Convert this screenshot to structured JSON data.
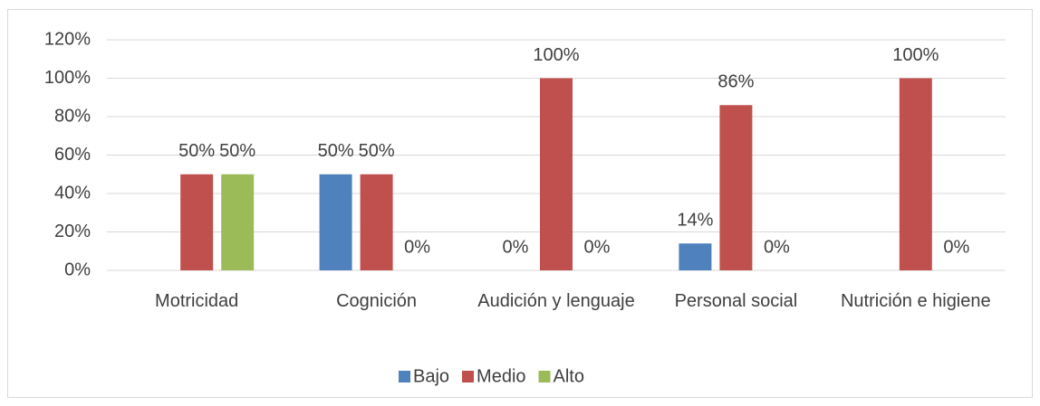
{
  "chart_data": {
    "type": "bar",
    "categories": [
      "Motricidad",
      "Cognición",
      "Audición y lenguaje",
      "Personal social",
      "Nutrición e higiene"
    ],
    "series": [
      {
        "name": "Bajo",
        "color": "#4f81bd",
        "values": [
          null,
          50,
          0,
          14,
          null
        ],
        "value_labels": [
          null,
          "50%",
          "0%",
          "14%",
          null
        ]
      },
      {
        "name": "Medio",
        "color": "#c0504d",
        "values": [
          50,
          50,
          100,
          86,
          100
        ],
        "value_labels": [
          "50%",
          "50%",
          "100%",
          "86%",
          "100%"
        ]
      },
      {
        "name": "Alto",
        "color": "#9bbb59",
        "values": [
          50,
          0,
          0,
          0,
          0
        ],
        "value_labels": [
          "50%",
          "0%",
          "0%",
          "0%",
          "0%"
        ]
      }
    ],
    "ylim": [
      0,
      120
    ],
    "yticks": [
      {
        "value": 0,
        "label": "0%"
      },
      {
        "value": 20,
        "label": "20%"
      },
      {
        "value": 40,
        "label": "40%"
      },
      {
        "value": 60,
        "label": "60%"
      },
      {
        "value": 80,
        "label": "80%"
      },
      {
        "value": 100,
        "label": "100%"
      },
      {
        "value": 120,
        "label": "120%"
      }
    ],
    "grid": true,
    "legend": "bottom"
  }
}
